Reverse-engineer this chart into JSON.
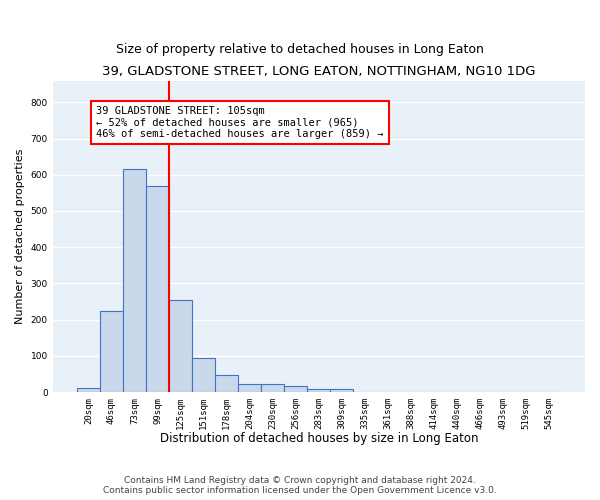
{
  "title": "39, GLADSTONE STREET, LONG EATON, NOTTINGHAM, NG10 1DG",
  "subtitle": "Size of property relative to detached houses in Long Eaton",
  "xlabel": "Distribution of detached houses by size in Long Eaton",
  "ylabel": "Number of detached properties",
  "bin_labels": [
    "20sqm",
    "46sqm",
    "73sqm",
    "99sqm",
    "125sqm",
    "151sqm",
    "178sqm",
    "204sqm",
    "230sqm",
    "256sqm",
    "283sqm",
    "309sqm",
    "335sqm",
    "361sqm",
    "388sqm",
    "414sqm",
    "440sqm",
    "466sqm",
    "493sqm",
    "519sqm",
    "545sqm"
  ],
  "bar_values": [
    10,
    225,
    615,
    570,
    255,
    95,
    47,
    22,
    22,
    18,
    8,
    8,
    0,
    0,
    0,
    0,
    0,
    0,
    0,
    0,
    0
  ],
  "bar_color": "#c9d9eb",
  "bar_edge_color": "#4472c4",
  "annotation_text": "39 GLADSTONE STREET: 105sqm\n← 52% of detached houses are smaller (965)\n46% of semi-detached houses are larger (859) →",
  "ylim": [
    0,
    860
  ],
  "yticks": [
    0,
    100,
    200,
    300,
    400,
    500,
    600,
    700,
    800
  ],
  "footer_line1": "Contains HM Land Registry data © Crown copyright and database right 2024.",
  "footer_line2": "Contains public sector information licensed under the Open Government Licence v3.0.",
  "bg_color": "#e8f0f8",
  "grid_color": "white",
  "title_fontsize": 9.5,
  "subtitle_fontsize": 9,
  "xlabel_fontsize": 8.5,
  "ylabel_fontsize": 8,
  "tick_fontsize": 6.5,
  "annot_fontsize": 7.5,
  "footer_fontsize": 6.5
}
